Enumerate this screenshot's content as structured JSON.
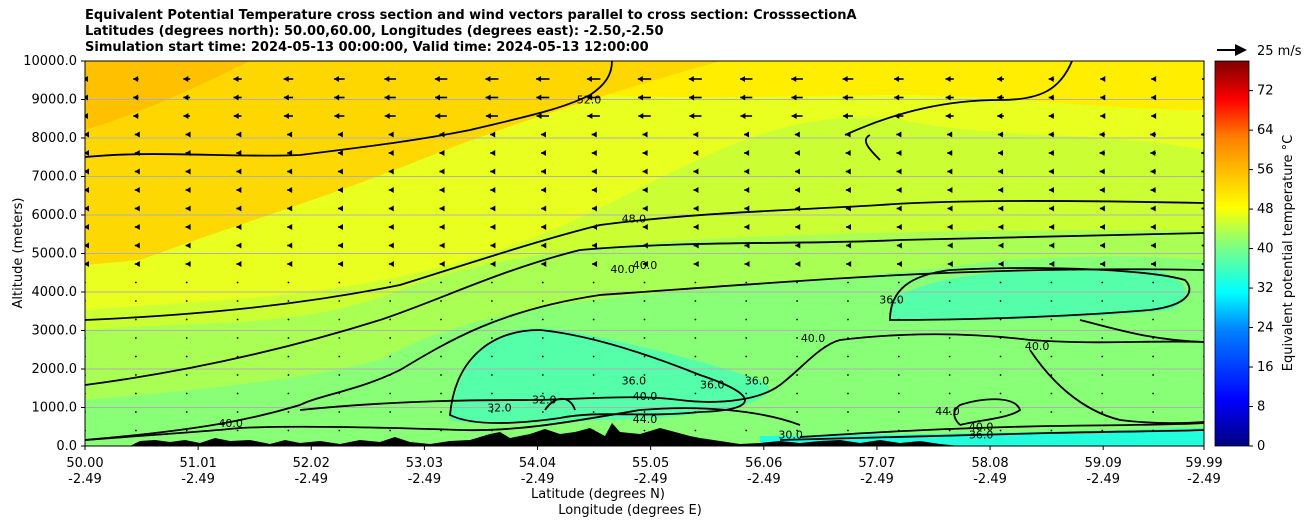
{
  "title_lines": [
    "Equivalent Potential Temperature cross section and wind vectors parallel to cross section: CrosssectionA",
    "Latitudes (degrees north): 50.00,60.00, Longitudes (degrees east): -2.50,-2.50",
    "Simulation start time: 2024-05-13 00:00:00, Valid time: 2024-05-13 12:00:00"
  ],
  "chart_data": {
    "type": "heatmap",
    "subtype": "filled-contour cross section with quiver wind vectors",
    "ylabel": "Altitude (meters)",
    "xlabel_lines": [
      "Latitude (degrees N)",
      "Longitude (degrees E)"
    ],
    "ylim": [
      0,
      10000
    ],
    "xlim": [
      50.0,
      59.99
    ],
    "y_ticks": [
      "0.0",
      "1000.0",
      "2000.0",
      "3000.0",
      "4000.0",
      "5000.0",
      "6000.0",
      "7000.0",
      "8000.0",
      "9000.0",
      "10000.0"
    ],
    "y_tick_values": [
      0,
      1000,
      2000,
      3000,
      4000,
      5000,
      6000,
      7000,
      8000,
      9000,
      10000
    ],
    "x_ticks": [
      {
        "lat": "50.00",
        "lon": "-2.49"
      },
      {
        "lat": "51.01",
        "lon": "-2.49"
      },
      {
        "lat": "52.02",
        "lon": "-2.49"
      },
      {
        "lat": "53.03",
        "lon": "-2.49"
      },
      {
        "lat": "54.04",
        "lon": "-2.49"
      },
      {
        "lat": "55.05",
        "lon": "-2.49"
      },
      {
        "lat": "56.06",
        "lon": "-2.49"
      },
      {
        "lat": "57.07",
        "lon": "-2.49"
      },
      {
        "lat": "58.08",
        "lon": "-2.49"
      },
      {
        "lat": "59.09",
        "lon": "-2.49"
      },
      {
        "lat": "59.99",
        "lon": "-2.49"
      }
    ],
    "x_tick_values": [
      50.0,
      51.01,
      52.02,
      53.03,
      54.04,
      55.05,
      56.06,
      57.07,
      58.08,
      59.09,
      59.99
    ],
    "horizontal_grid": true,
    "colorbar": {
      "label": "Equivalent potential temperature °C",
      "range": [
        0,
        78
      ],
      "ticks": [
        "0",
        "8",
        "16",
        "24",
        "32",
        "40",
        "48",
        "56",
        "64",
        "72"
      ],
      "tick_values": [
        0,
        8,
        16,
        24,
        32,
        40,
        48,
        56,
        64,
        72
      ],
      "colors": [
        "#00007f",
        "#0000ff",
        "#0080ff",
        "#00ffff",
        "#80ff80",
        "#ffff00",
        "#ff8000",
        "#ff0000",
        "#7f0000"
      ]
    },
    "quiver_key": "25 m/s",
    "contour_labels": [
      {
        "text": "52.0",
        "lat": 54.5,
        "alt": 8900
      },
      {
        "text": "48.0",
        "lat": 54.9,
        "alt": 5800
      },
      {
        "text": "40.0",
        "lat": 54.8,
        "alt": 4500
      },
      {
        "text": "40.0",
        "lat": 55.0,
        "alt": 4600
      },
      {
        "text": "36.0",
        "lat": 57.2,
        "alt": 3700
      },
      {
        "text": "40.0",
        "lat": 56.5,
        "alt": 2700
      },
      {
        "text": "40.0",
        "lat": 58.5,
        "alt": 2500
      },
      {
        "text": "36.0",
        "lat": 54.9,
        "alt": 1600
      },
      {
        "text": "36.0",
        "lat": 55.6,
        "alt": 1500
      },
      {
        "text": "36.0",
        "lat": 56.0,
        "alt": 1600
      },
      {
        "text": "40.0",
        "lat": 55.0,
        "alt": 1200
      },
      {
        "text": "32.0",
        "lat": 53.7,
        "alt": 900
      },
      {
        "text": "32.0",
        "lat": 54.1,
        "alt": 1100
      },
      {
        "text": "44.0",
        "lat": 55.0,
        "alt": 600
      },
      {
        "text": "44.0",
        "lat": 57.7,
        "alt": 800
      },
      {
        "text": "40.0",
        "lat": 51.3,
        "alt": 500
      },
      {
        "text": "40.0",
        "lat": 58.0,
        "alt": 400
      },
      {
        "text": "36.0",
        "lat": 58.0,
        "alt": 200
      },
      {
        "text": "30.0",
        "lat": 56.3,
        "alt": 200
      }
    ]
  }
}
